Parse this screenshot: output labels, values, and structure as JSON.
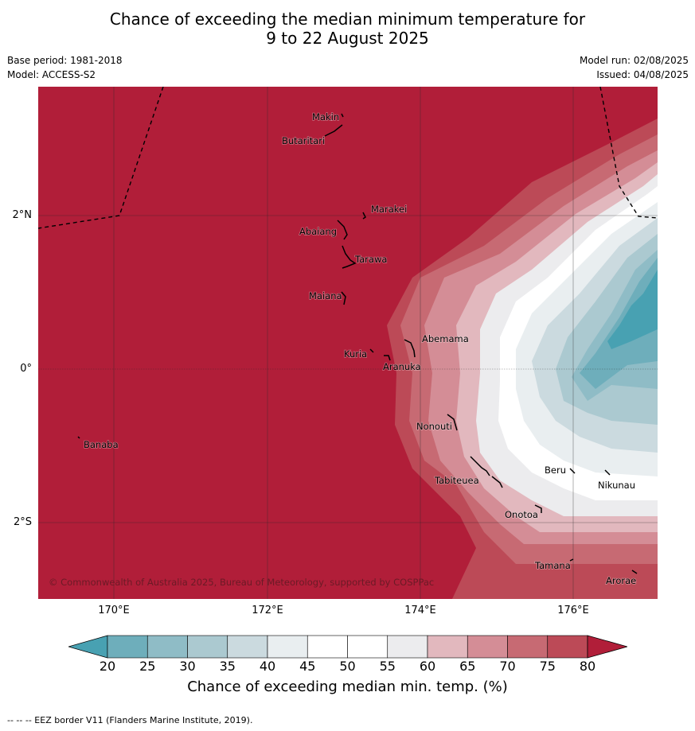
{
  "title": {
    "line1": "Chance of exceeding the median minimum temperature for",
    "line2": "9 to 22 August 2025"
  },
  "meta": {
    "base_period": "Base period: 1981-2018",
    "model": "Model: ACCESS-S2",
    "model_run": "Model run: 02/08/2025",
    "issued": "Issued: 04/08/2025"
  },
  "map": {
    "lat_labels": [
      "2°N",
      "0°",
      "2°S"
    ],
    "lon_labels": [
      "170°E",
      "172°E",
      "174°E",
      "176°E"
    ],
    "copyright": "© Commonwealth of Australia 2025, Bureau of Meteorology, supported by COSPPac",
    "places": [
      "Makin",
      "Butaritari",
      "Marakei",
      "Abaiang",
      "Tarawa",
      "Maiana",
      "Abemama",
      "Kuria",
      "Aranuka",
      "Banaba",
      "Nonouti",
      "Tabiteuea",
      "Beru",
      "Nikunau",
      "Onotoa",
      "Tamana",
      "Arorae"
    ]
  },
  "colorbar": {
    "ticks": [
      "20",
      "25",
      "30",
      "35",
      "40",
      "45",
      "50",
      "55",
      "60",
      "65",
      "70",
      "75",
      "80"
    ],
    "colors": [
      "#48a1b2",
      "#6eaebb",
      "#8fbcc6",
      "#abc9d0",
      "#cbdadf",
      "#e9eef0",
      "#ffffff",
      "#ffffff",
      "#ececee",
      "#e2b8be",
      "#d48d96",
      "#c76a73",
      "#bc4a57",
      "#b11e39"
    ],
    "label": "Chance of exceeding median min. temp. (%)"
  },
  "footnote": "--  --  -- EEZ border V11 (Flanders Marine Institute, 2019)."
}
